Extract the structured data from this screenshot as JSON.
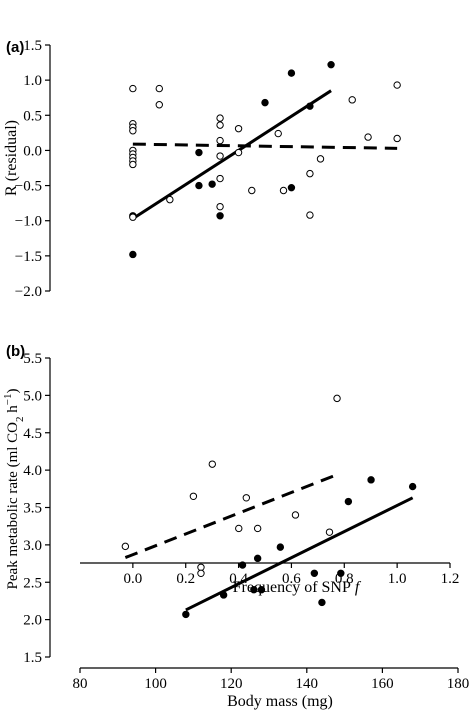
{
  "chart_data": [
    {
      "type": "scatter",
      "panel_label": "(a)",
      "xlabel": "Frequency of SNP",
      "xlabel_italic": "f",
      "ylabel": "R (residual)",
      "xlim": [
        -0.2,
        1.2
      ],
      "ylim": [
        -2.0,
        1.5
      ],
      "xticks": [
        "0.0",
        "0.2",
        "0.4",
        "0.6",
        "0.8",
        "1.0",
        "1.2"
      ],
      "xtick_values": [
        0.0,
        0.2,
        0.4,
        0.6,
        0.8,
        1.0,
        1.2
      ],
      "yticks": [
        "−2.0",
        "−1.5",
        "−1.0",
        "−0.5",
        "0.0",
        "0.5",
        "1.0",
        "1.5"
      ],
      "ytick_values": [
        -2.0,
        -1.5,
        -1.0,
        -0.5,
        0.0,
        0.5,
        1.0,
        1.5
      ],
      "grid": false,
      "series": [
        {
          "marker": "filled",
          "points": [
            [
              0.0,
              -0.93
            ],
            [
              0.0,
              -1.48
            ],
            [
              0.25,
              -0.03
            ],
            [
              0.25,
              -0.5
            ],
            [
              0.3,
              -0.48
            ],
            [
              0.33,
              -0.93
            ],
            [
              0.5,
              0.68
            ],
            [
              0.6,
              1.1
            ],
            [
              0.6,
              -0.53
            ],
            [
              0.67,
              0.63
            ],
            [
              0.75,
              1.22
            ]
          ],
          "fit": [
            [
              0.0,
              -0.97
            ],
            [
              0.75,
              0.85
            ]
          ],
          "fit_style": "solid"
        },
        {
          "marker": "open",
          "points": [
            [
              0.0,
              0.88
            ],
            [
              0.0,
              0.38
            ],
            [
              0.0,
              0.33
            ],
            [
              0.0,
              0.28
            ],
            [
              0.0,
              0.0
            ],
            [
              0.0,
              -0.05
            ],
            [
              0.0,
              -0.1
            ],
            [
              0.0,
              -0.15
            ],
            [
              0.0,
              -0.2
            ],
            [
              0.0,
              -0.95
            ],
            [
              0.1,
              0.88
            ],
            [
              0.1,
              0.65
            ],
            [
              0.14,
              -0.7
            ],
            [
              0.33,
              0.46
            ],
            [
              0.33,
              0.36
            ],
            [
              0.33,
              0.14
            ],
            [
              0.33,
              -0.08
            ],
            [
              0.33,
              -0.4
            ],
            [
              0.33,
              -0.8
            ],
            [
              0.4,
              0.31
            ],
            [
              0.4,
              -0.03
            ],
            [
              0.45,
              -0.57
            ],
            [
              0.55,
              0.24
            ],
            [
              0.57,
              -0.57
            ],
            [
              0.67,
              -0.33
            ],
            [
              0.67,
              -0.92
            ],
            [
              0.71,
              -0.12
            ],
            [
              0.83,
              0.72
            ],
            [
              0.89,
              0.19
            ],
            [
              1.0,
              0.93
            ],
            [
              1.0,
              0.17
            ]
          ],
          "fit": [
            [
              0.0,
              0.09
            ],
            [
              1.0,
              0.03
            ]
          ],
          "fit_style": "dashed"
        }
      ]
    },
    {
      "type": "scatter",
      "panel_label": "(b)",
      "xlabel": "Body mass (mg)",
      "ylabel": "Peak metabolic rate (ml CO",
      "ylabel_sub": "2",
      "ylabel_tail": " h",
      "ylabel_sup": "−1",
      "ylabel_end": ")",
      "xlim": [
        80,
        180
      ],
      "ylim": [
        1.5,
        5.5
      ],
      "xticks": [
        "80",
        "100",
        "120",
        "140",
        "160",
        "180"
      ],
      "xtick_values": [
        80,
        100,
        120,
        140,
        160,
        180
      ],
      "yticks": [
        "1.5",
        "2.0",
        "2.5",
        "3.0",
        "3.5",
        "4.0",
        "4.5",
        "5.0",
        "5.5"
      ],
      "ytick_values": [
        1.5,
        2.0,
        2.5,
        3.0,
        3.5,
        4.0,
        4.5,
        5.0,
        5.5
      ],
      "grid": false,
      "series": [
        {
          "marker": "filled",
          "points": [
            [
              108,
              2.07
            ],
            [
              118,
              2.33
            ],
            [
              123,
              2.73
            ],
            [
              126,
              2.4
            ],
            [
              127,
              2.82
            ],
            [
              128,
              2.4
            ],
            [
              133,
              2.97
            ],
            [
              142,
              2.62
            ],
            [
              144,
              2.23
            ],
            [
              149,
              2.62
            ],
            [
              151,
              3.58
            ],
            [
              157,
              3.87
            ],
            [
              168,
              3.78
            ]
          ],
          "fit": [
            [
              108,
              2.13
            ],
            [
              168,
              3.63
            ]
          ],
          "fit_style": "solid"
        },
        {
          "marker": "open",
          "points": [
            [
              92,
              2.98
            ],
            [
              110,
              3.65
            ],
            [
              112,
              2.7
            ],
            [
              112,
              2.62
            ],
            [
              115,
              4.08
            ],
            [
              122,
              3.22
            ],
            [
              124,
              3.63
            ],
            [
              127,
              3.22
            ],
            [
              137,
              3.4
            ],
            [
              146,
              3.17
            ],
            [
              148,
              4.96
            ]
          ],
          "fit": [
            [
              92,
              2.83
            ],
            [
              147,
              3.92
            ]
          ],
          "fit_style": "dashed"
        }
      ]
    }
  ]
}
